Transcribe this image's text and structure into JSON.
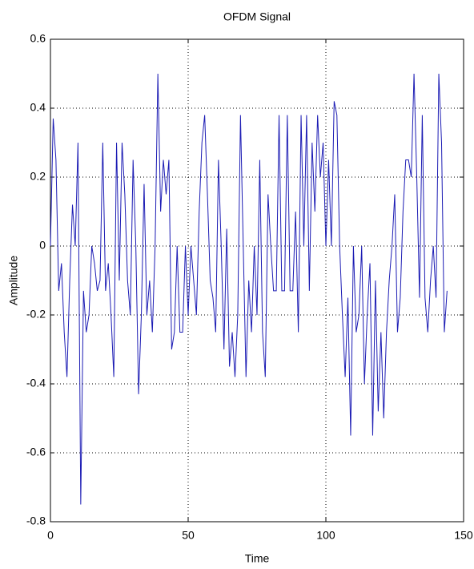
{
  "chart_data": {
    "type": "line",
    "title": "OFDM Signal",
    "x_label": "Time",
    "y_label": "Amplitude",
    "x": [
      0,
      1,
      2,
      3,
      4,
      5,
      6,
      7,
      8,
      9,
      10,
      11,
      12,
      13,
      14,
      15,
      16,
      17,
      18,
      19,
      20,
      21,
      22,
      23,
      24,
      25,
      26,
      27,
      28,
      29,
      30,
      31,
      32,
      33,
      34,
      35,
      36,
      37,
      38,
      39,
      40,
      41,
      42,
      43,
      44,
      45,
      46,
      47,
      48,
      49,
      50,
      51,
      52,
      53,
      54,
      55,
      56,
      57,
      58,
      59,
      60,
      61,
      62,
      63,
      64,
      65,
      66,
      67,
      68,
      69,
      70,
      71,
      72,
      73,
      74,
      75,
      76,
      77,
      78,
      79,
      80,
      81,
      82,
      83,
      84,
      85,
      86,
      87,
      88,
      89,
      90,
      91,
      92,
      93,
      94,
      95,
      96,
      97,
      98,
      99,
      100,
      101,
      102,
      103,
      104,
      105,
      106,
      107,
      108,
      109,
      110,
      111,
      112,
      113,
      114,
      115,
      116,
      117,
      118,
      119,
      120,
      121,
      122,
      123,
      124,
      125,
      126,
      127,
      128,
      129,
      130,
      131,
      132,
      133,
      134,
      135,
      136,
      137,
      138,
      139,
      140,
      141,
      142,
      143,
      144
    ],
    "series": [
      {
        "color": "#1c1cb4",
        "values": [
          0.0,
          0.37,
          0.25,
          -0.13,
          -0.05,
          -0.25,
          -0.38,
          -0.1,
          0.12,
          0.0,
          0.3,
          -0.75,
          -0.13,
          -0.25,
          -0.2,
          0.0,
          -0.05,
          -0.13,
          -0.1,
          0.3,
          -0.13,
          -0.05,
          -0.2,
          -0.38,
          0.3,
          -0.1,
          0.3,
          0.15,
          -0.1,
          -0.2,
          0.25,
          0.0,
          -0.43,
          -0.2,
          0.18,
          -0.2,
          -0.1,
          -0.25,
          0.0,
          0.5,
          0.1,
          0.25,
          0.15,
          0.25,
          -0.3,
          -0.25,
          0.0,
          -0.25,
          -0.25,
          0.0,
          -0.2,
          0.0,
          -0.1,
          -0.2,
          0.1,
          0.3,
          0.38,
          0.15,
          -0.1,
          -0.15,
          -0.25,
          0.25,
          0.0,
          -0.3,
          0.05,
          -0.35,
          -0.25,
          -0.38,
          -0.2,
          0.38,
          0.0,
          -0.38,
          -0.1,
          -0.25,
          0.0,
          -0.2,
          0.25,
          -0.25,
          -0.38,
          0.15,
          0.0,
          -0.13,
          -0.13,
          0.38,
          -0.13,
          -0.13,
          0.38,
          -0.13,
          -0.13,
          0.1,
          -0.25,
          0.38,
          0.0,
          0.38,
          -0.13,
          0.3,
          0.1,
          0.38,
          0.2,
          0.3,
          0.0,
          0.25,
          0.0,
          0.42,
          0.38,
          0.0,
          -0.2,
          -0.38,
          -0.15,
          -0.55,
          0.0,
          -0.25,
          -0.2,
          0.0,
          -0.4,
          -0.2,
          -0.05,
          -0.55,
          -0.1,
          -0.48,
          -0.25,
          -0.5,
          -0.25,
          -0.1,
          0.0,
          0.15,
          -0.25,
          -0.15,
          0.1,
          0.25,
          0.25,
          0.2,
          0.5,
          0.2,
          -0.15,
          0.38,
          -0.15,
          -0.25,
          -0.1,
          0.0,
          -0.15,
          0.5,
          0.3,
          -0.25,
          -0.13
        ]
      }
    ],
    "xlim": [
      0,
      150
    ],
    "ylim": [
      -0.8,
      0.6
    ],
    "xticks": [
      0,
      50,
      100,
      150
    ],
    "yticks": [
      -0.8,
      -0.6,
      -0.4,
      -0.2,
      0,
      0.2,
      0.4,
      0.6
    ],
    "grid": true
  }
}
